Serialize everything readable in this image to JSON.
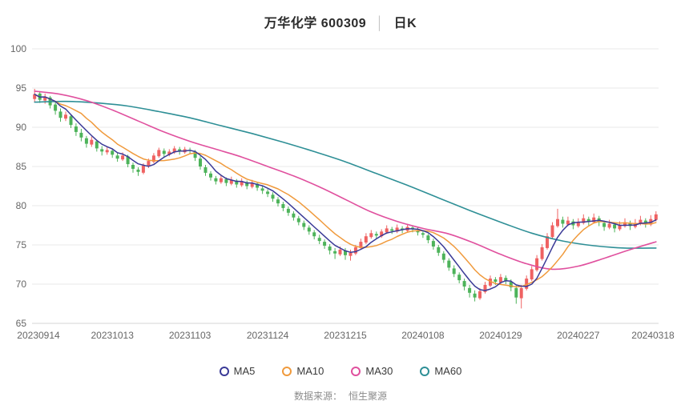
{
  "title": {
    "main": "万华化学 600309",
    "separator": "│",
    "sub": "日K"
  },
  "footer": {
    "label": "数据来源：",
    "value": "恒生聚源"
  },
  "legend": [
    {
      "label": "MA5",
      "color": "#3a3a97"
    },
    {
      "label": "MA10",
      "color": "#f09a3c"
    },
    {
      "label": "MA30",
      "color": "#e0509e"
    },
    {
      "label": "MA60",
      "color": "#2e8f96"
    }
  ],
  "chart_data": {
    "type": "candlestick",
    "title": "万华化学 600309 日K",
    "xlabel": "",
    "ylabel": "",
    "ylim": [
      65,
      100
    ],
    "yticks": [
      65,
      70,
      75,
      80,
      85,
      90,
      95,
      100
    ],
    "grid": "horizontal",
    "legend_position": "bottom",
    "xtick_labels": [
      "20230914",
      "20231013",
      "20231103",
      "20231124",
      "20231215",
      "20240108",
      "20240129",
      "20240227",
      "20240318"
    ],
    "xtick_indices": [
      0,
      15,
      30,
      45,
      60,
      75,
      90,
      105,
      120
    ],
    "colors": {
      "up": "#ef6262",
      "down": "#4db35a",
      "ma5": "#3a3a97",
      "ma10": "#f09a3c",
      "ma30": "#e0509e",
      "ma60": "#2e8f96"
    },
    "candles": [
      [
        93.6,
        94.9,
        93.2,
        94.2
      ],
      [
        94.3,
        94.6,
        93.1,
        93.5
      ],
      [
        93.4,
        94.3,
        93.0,
        93.9
      ],
      [
        93.8,
        94.0,
        92.4,
        92.8
      ],
      [
        92.9,
        93.3,
        91.6,
        92.1
      ],
      [
        92.0,
        92.4,
        90.7,
        91.2
      ],
      [
        91.1,
        92.0,
        90.8,
        91.6
      ],
      [
        91.4,
        91.6,
        89.9,
        90.3
      ],
      [
        90.1,
        90.5,
        88.9,
        89.4
      ],
      [
        89.3,
        89.8,
        88.2,
        88.7
      ],
      [
        88.6,
        88.9,
        87.4,
        87.9
      ],
      [
        87.8,
        88.8,
        87.5,
        88.4
      ],
      [
        88.2,
        88.4,
        86.9,
        87.3
      ],
      [
        87.2,
        87.6,
        86.4,
        86.9
      ],
      [
        86.8,
        87.5,
        86.5,
        87.1
      ],
      [
        87.0,
        87.3,
        86.1,
        86.5
      ],
      [
        86.4,
        86.8,
        85.6,
        86.0
      ],
      [
        85.9,
        86.8,
        85.7,
        86.4
      ],
      [
        86.3,
        86.5,
        84.9,
        85.3
      ],
      [
        85.2,
        85.5,
        84.2,
        84.7
      ],
      [
        84.6,
        84.9,
        83.8,
        84.3
      ],
      [
        84.2,
        85.4,
        84.0,
        85.1
      ],
      [
        85.0,
        86.0,
        84.8,
        85.7
      ],
      [
        85.6,
        86.7,
        85.4,
        86.4
      ],
      [
        86.3,
        87.4,
        86.1,
        87.1
      ],
      [
        87.0,
        87.3,
        86.2,
        86.6
      ],
      [
        86.5,
        87.2,
        86.3,
        86.9
      ],
      [
        86.8,
        87.6,
        86.6,
        87.3
      ],
      [
        87.2,
        87.5,
        86.5,
        86.9
      ],
      [
        86.8,
        87.5,
        86.6,
        87.2
      ],
      [
        87.1,
        87.4,
        86.6,
        87.0
      ],
      [
        86.9,
        87.1,
        85.7,
        86.1
      ],
      [
        86.0,
        86.3,
        84.6,
        85.0
      ],
      [
        84.9,
        85.2,
        83.8,
        84.2
      ],
      [
        84.1,
        84.4,
        83.2,
        83.6
      ],
      [
        83.5,
        83.8,
        82.7,
        83.1
      ],
      [
        83.0,
        83.9,
        82.8,
        83.5
      ],
      [
        83.4,
        83.6,
        82.5,
        82.9
      ],
      [
        82.8,
        83.7,
        82.6,
        83.3
      ],
      [
        83.2,
        83.4,
        82.3,
        82.7
      ],
      [
        82.6,
        83.5,
        82.4,
        83.1
      ],
      [
        83.0,
        83.2,
        82.1,
        82.5
      ],
      [
        82.4,
        83.3,
        82.2,
        82.9
      ],
      [
        82.8,
        83.0,
        81.9,
        82.3
      ],
      [
        82.2,
        82.5,
        81.5,
        81.9
      ],
      [
        81.8,
        82.1,
        81.1,
        81.5
      ],
      [
        81.4,
        81.7,
        80.5,
        80.9
      ],
      [
        80.8,
        81.1,
        79.9,
        80.3
      ],
      [
        80.2,
        80.5,
        79.3,
        79.7
      ],
      [
        79.6,
        79.9,
        78.7,
        79.1
      ],
      [
        79.0,
        79.3,
        78.1,
        78.5
      ],
      [
        78.4,
        78.7,
        77.5,
        77.9
      ],
      [
        77.8,
        78.1,
        76.9,
        77.3
      ],
      [
        77.2,
        77.5,
        76.3,
        76.7
      ],
      [
        76.6,
        76.9,
        75.7,
        76.1
      ],
      [
        75.9,
        76.3,
        75.1,
        75.5
      ],
      [
        75.4,
        75.7,
        74.5,
        74.9
      ],
      [
        74.8,
        75.1,
        73.8,
        74.3
      ],
      [
        74.2,
        74.6,
        73.2,
        73.9
      ],
      [
        73.8,
        74.8,
        73.6,
        74.4
      ],
      [
        74.3,
        74.6,
        73.1,
        73.7
      ],
      [
        73.6,
        74.4,
        73.0,
        74.0
      ],
      [
        73.9,
        75.0,
        73.7,
        74.7
      ],
      [
        74.6,
        75.8,
        74.4,
        75.4
      ],
      [
        75.3,
        76.5,
        75.1,
        76.1
      ],
      [
        76.0,
        76.9,
        75.8,
        76.5
      ],
      [
        76.4,
        76.7,
        75.8,
        76.2
      ],
      [
        76.1,
        77.0,
        75.9,
        76.7
      ],
      [
        76.6,
        77.5,
        76.4,
        77.1
      ],
      [
        77.0,
        77.3,
        76.4,
        76.8
      ],
      [
        76.7,
        77.6,
        76.5,
        77.2
      ],
      [
        77.1,
        77.4,
        76.5,
        76.9
      ],
      [
        76.8,
        77.7,
        76.6,
        77.3
      ],
      [
        77.2,
        77.5,
        76.6,
        77.0
      ],
      [
        76.9,
        77.2,
        76.2,
        76.6
      ],
      [
        76.5,
        76.8,
        75.9,
        76.3
      ],
      [
        76.2,
        76.4,
        75.2,
        75.6
      ],
      [
        75.5,
        75.8,
        74.4,
        74.8
      ],
      [
        74.7,
        75.0,
        73.6,
        74.0
      ],
      [
        73.9,
        74.2,
        72.7,
        73.1
      ],
      [
        73.0,
        73.3,
        71.7,
        72.1
      ],
      [
        72.0,
        72.4,
        70.9,
        71.3
      ],
      [
        71.2,
        71.5,
        70.1,
        70.5
      ],
      [
        70.4,
        70.7,
        69.2,
        69.7
      ],
      [
        69.5,
        69.9,
        68.3,
        68.9
      ],
      [
        68.8,
        69.2,
        67.8,
        68.3
      ],
      [
        68.2,
        69.5,
        68.0,
        69.1
      ],
      [
        69.0,
        70.3,
        68.8,
        69.9
      ],
      [
        69.8,
        71.1,
        69.6,
        70.7
      ],
      [
        70.6,
        70.9,
        69.9,
        70.3
      ],
      [
        70.2,
        71.3,
        70.0,
        70.9
      ],
      [
        70.8,
        71.1,
        70.0,
        70.4
      ],
      [
        70.3,
        70.6,
        69.1,
        69.6
      ],
      [
        69.5,
        69.8,
        67.5,
        68.3
      ],
      [
        68.2,
        69.9,
        66.9,
        69.5
      ],
      [
        69.4,
        71.1,
        69.2,
        70.7
      ],
      [
        70.6,
        72.3,
        70.4,
        71.9
      ],
      [
        71.8,
        73.7,
        71.6,
        73.3
      ],
      [
        73.2,
        75.1,
        73.0,
        74.7
      ],
      [
        74.6,
        76.5,
        74.4,
        76.1
      ],
      [
        76.0,
        77.9,
        75.8,
        77.5
      ],
      [
        77.4,
        79.6,
        77.2,
        78.3
      ],
      [
        78.2,
        78.6,
        77.2,
        77.7
      ],
      [
        77.6,
        78.6,
        77.4,
        78.1
      ],
      [
        78.0,
        78.3,
        77.0,
        77.5
      ],
      [
        77.4,
        78.4,
        77.2,
        77.9
      ],
      [
        77.8,
        78.9,
        77.6,
        78.4
      ],
      [
        78.3,
        78.6,
        77.5,
        78.0
      ],
      [
        77.9,
        79.0,
        77.7,
        78.5
      ],
      [
        78.4,
        78.7,
        77.4,
        77.9
      ],
      [
        77.8,
        78.1,
        76.8,
        77.3
      ],
      [
        77.2,
        78.2,
        77.0,
        77.7
      ],
      [
        77.6,
        77.9,
        76.6,
        77.1
      ],
      [
        77.0,
        78.0,
        76.8,
        77.5
      ],
      [
        77.4,
        78.4,
        77.2,
        77.9
      ],
      [
        77.8,
        78.1,
        76.9,
        77.4
      ],
      [
        77.3,
        78.3,
        77.1,
        77.8
      ],
      [
        77.7,
        78.7,
        77.5,
        78.2
      ],
      [
        78.1,
        78.4,
        77.2,
        77.7
      ],
      [
        77.6,
        78.8,
        77.4,
        78.3
      ],
      [
        78.2,
        79.3,
        78.0,
        78.9
      ]
    ],
    "ma5_window": 5,
    "ma10_window": 10,
    "ma30_anchors": [
      [
        0,
        94.6
      ],
      [
        5,
        94.2
      ],
      [
        10,
        93.4
      ],
      [
        15,
        92.2
      ],
      [
        20,
        90.8
      ],
      [
        25,
        89.4
      ],
      [
        30,
        88.2
      ],
      [
        35,
        87.2
      ],
      [
        40,
        86.2
      ],
      [
        45,
        85.0
      ],
      [
        50,
        83.8
      ],
      [
        55,
        82.4
      ],
      [
        60,
        80.8
      ],
      [
        65,
        79.2
      ],
      [
        70,
        78.0
      ],
      [
        75,
        77.1
      ],
      [
        80,
        76.4
      ],
      [
        85,
        75.2
      ],
      [
        90,
        73.8
      ],
      [
        95,
        72.6
      ],
      [
        100,
        71.9
      ],
      [
        105,
        72.3
      ],
      [
        110,
        73.3
      ],
      [
        115,
        74.4
      ],
      [
        120,
        75.4
      ]
    ],
    "ma60_anchors": [
      [
        0,
        93.2
      ],
      [
        6,
        93.3
      ],
      [
        12,
        93.1
      ],
      [
        18,
        92.7
      ],
      [
        24,
        92.0
      ],
      [
        30,
        91.2
      ],
      [
        36,
        90.2
      ],
      [
        42,
        89.2
      ],
      [
        48,
        88.1
      ],
      [
        54,
        86.9
      ],
      [
        60,
        85.6
      ],
      [
        66,
        84.1
      ],
      [
        72,
        82.6
      ],
      [
        78,
        81.0
      ],
      [
        84,
        79.4
      ],
      [
        90,
        77.9
      ],
      [
        96,
        76.5
      ],
      [
        102,
        75.5
      ],
      [
        108,
        74.9
      ],
      [
        114,
        74.6
      ],
      [
        120,
        74.6
      ]
    ]
  }
}
